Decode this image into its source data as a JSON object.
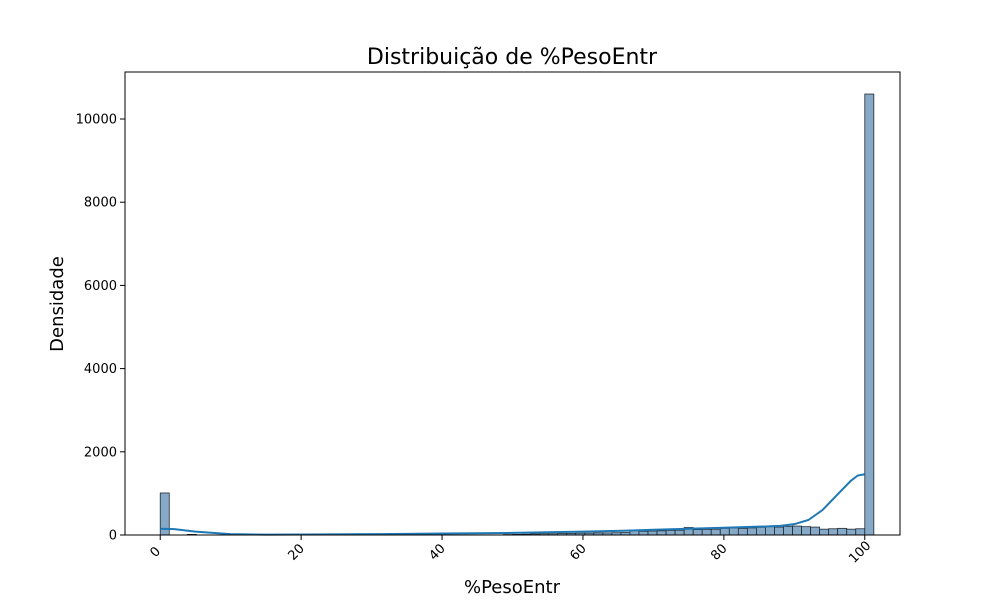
{
  "chart_data": {
    "type": "bar",
    "title": "Distribuição de %PesoEntr",
    "xlabel": "%PesoEntr",
    "ylabel": "Densidade",
    "xlim": [
      -5,
      105
    ],
    "ylim": [
      0,
      11130
    ],
    "xticks": [
      0,
      20,
      40,
      60,
      80,
      100
    ],
    "xtick_labels": [
      "0",
      "20",
      "40",
      "60",
      "80",
      "100"
    ],
    "xtick_rotation": 45,
    "yticks": [
      0,
      2000,
      4000,
      6000,
      8000,
      10000
    ],
    "ytick_labels": [
      "0",
      "2000",
      "4000",
      "6000",
      "8000",
      "10000"
    ],
    "grid": false,
    "colors": {
      "bar_fill": "#87a9c8",
      "bar_edge": "#1f2a33",
      "kde_line": "#1f77b4"
    },
    "histogram": {
      "bin_width": 1.2821,
      "bin_edges_start": 0,
      "counts": [
        1010,
        0,
        0,
        15,
        0,
        0,
        0,
        0,
        0,
        0,
        0,
        0,
        0,
        0,
        0,
        0,
        0,
        0,
        0,
        0,
        0,
        0,
        0,
        0,
        0,
        0,
        0,
        0,
        0,
        0,
        0,
        0,
        0,
        0,
        0,
        0,
        0,
        0,
        10,
        15,
        20,
        25,
        30,
        30,
        35,
        40,
        45,
        45,
        50,
        50,
        55,
        60,
        120,
        90,
        95,
        100,
        110,
        115,
        180,
        130,
        135,
        140,
        160,
        170,
        155,
        170,
        185,
        200,
        190,
        210,
        215,
        200,
        190,
        140,
        150,
        160,
        140,
        150,
        10600
      ]
    },
    "kde": {
      "x": [
        0,
        2,
        5,
        10,
        15,
        20,
        30,
        40,
        50,
        60,
        65,
        70,
        75,
        80,
        85,
        88,
        90,
        92,
        94,
        96,
        98,
        99,
        100
      ],
      "y": [
        150,
        140,
        80,
        20,
        10,
        12,
        20,
        35,
        50,
        80,
        100,
        125,
        150,
        175,
        200,
        220,
        260,
        360,
        600,
        950,
        1300,
        1430,
        1460
      ]
    }
  }
}
